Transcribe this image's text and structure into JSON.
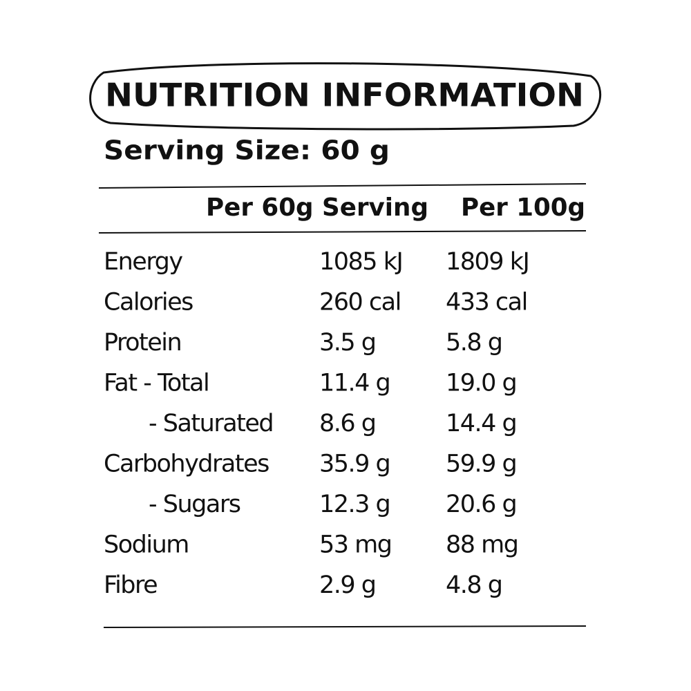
{
  "header": {
    "title": "NUTRITION INFORMATION",
    "serving_size": "Serving Size: 60 g"
  },
  "table": {
    "columns": [
      "Per 60g Serving",
      "Per 100g"
    ],
    "rows": [
      [
        "Energy",
        "1085 kJ",
        "1809 kJ"
      ],
      [
        "Calories",
        "260 cal",
        "433 cal"
      ],
      [
        "Protein",
        "3.5 g",
        "5.8 g"
      ],
      [
        "Fat - Total",
        "11.4 g",
        "19.0 g"
      ],
      [
        "- Saturated",
        "8.6 g",
        "14.4 g"
      ],
      [
        "Carbohydrates",
        "35.9 g",
        "59.9 g"
      ],
      [
        "- Sugars",
        "12.3 g",
        "20.6 g"
      ],
      [
        "Sodium",
        "53 mg",
        "88 mg"
      ],
      [
        "Fibre",
        "2.9 g",
        "4.8 g"
      ]
    ]
  }
}
